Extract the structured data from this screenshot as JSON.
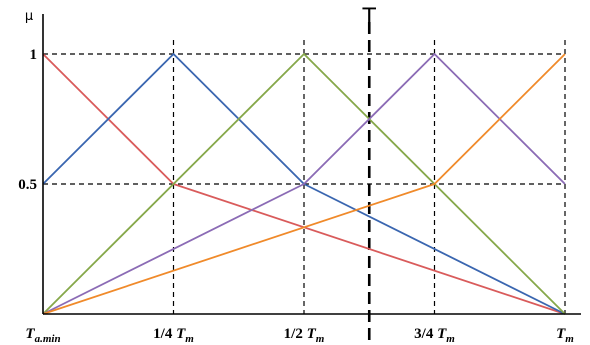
{
  "chart_data": {
    "type": "line",
    "ylabel": "μ",
    "x_ticks": [
      {
        "x": 0,
        "prefix": "",
        "main": "T",
        "sub": "a.min"
      },
      {
        "x": 0.25,
        "prefix": "1/4 ",
        "main": "T",
        "sub": "m"
      },
      {
        "x": 0.5,
        "prefix": "1/2 ",
        "main": "T",
        "sub": "m"
      },
      {
        "x": 0.75,
        "prefix": "3/4 ",
        "main": "T",
        "sub": "m"
      },
      {
        "x": 1,
        "prefix": "",
        "main": "T",
        "sub": "m"
      }
    ],
    "y_ticks": [
      {
        "y": 1,
        "label": "1"
      },
      {
        "y": 0.5,
        "label": "0.5"
      }
    ],
    "xlim": [
      0,
      1
    ],
    "ylim": [
      0,
      1
    ],
    "grid": "dashed",
    "threshold": {
      "x": 0.625,
      "label": "T"
    },
    "series": [
      {
        "color": "#d95b5b",
        "points": [
          [
            0,
            1
          ],
          [
            0.25,
            0.5
          ],
          [
            1,
            0
          ]
        ]
      },
      {
        "color": "#3a66b0",
        "points": [
          [
            0,
            0.5
          ],
          [
            0.25,
            1
          ],
          [
            0.5,
            0.5
          ],
          [
            1,
            0
          ]
        ]
      },
      {
        "color": "#86a84a",
        "points": [
          [
            0,
            0
          ],
          [
            0.5,
            1
          ],
          [
            1,
            0
          ]
        ]
      },
      {
        "color": "#8b6bb5",
        "points": [
          [
            0,
            0
          ],
          [
            0.5,
            0.5
          ],
          [
            0.75,
            1
          ],
          [
            1,
            0.5
          ]
        ]
      },
      {
        "color": "#f08a2a",
        "points": [
          [
            0,
            0
          ],
          [
            0.75,
            0.5
          ],
          [
            1,
            1
          ]
        ]
      }
    ]
  }
}
